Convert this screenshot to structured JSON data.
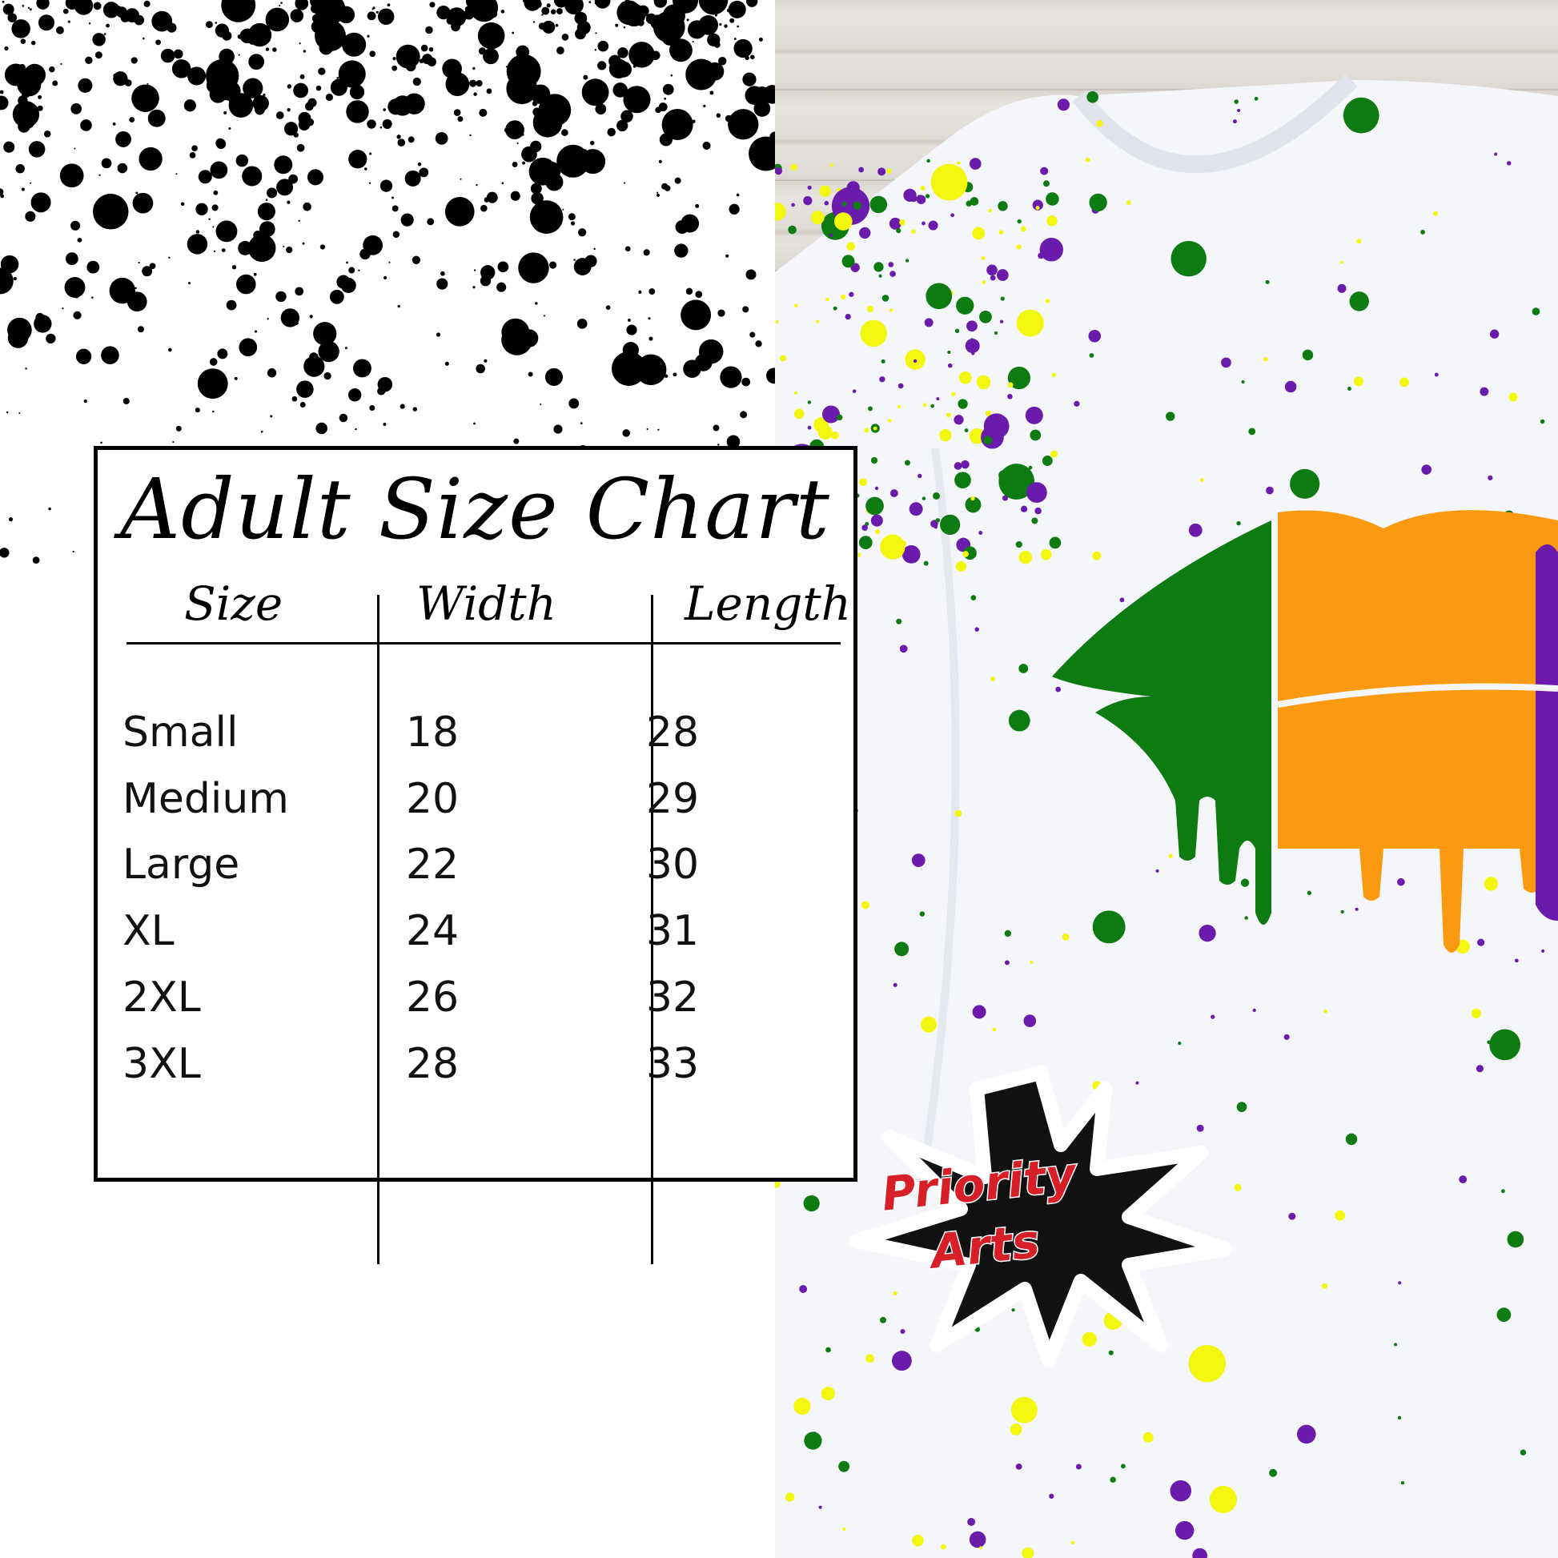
{
  "size_chart": {
    "title": "Adult Size Chart",
    "headers": [
      "Size",
      "Width",
      "Length"
    ],
    "rows": [
      {
        "size": "Small",
        "width": "18",
        "length": "28"
      },
      {
        "size": "Medium",
        "width": "20",
        "length": "29"
      },
      {
        "size": "Large",
        "width": "22",
        "length": "30"
      },
      {
        "size": "XL",
        "width": "24",
        "length": "31"
      },
      {
        "size": "2XL",
        "width": "26",
        "length": "32"
      },
      {
        "size": "3XL",
        "width": "28",
        "length": "33"
      }
    ]
  },
  "logo": {
    "line1": "Priority",
    "line2": "Arts"
  },
  "colors": {
    "green": "#0e7a12",
    "orange": "#fb9a10",
    "purple": "#6a1bab",
    "yellow": "#f3f60e",
    "logo_red": "#d61f26"
  }
}
